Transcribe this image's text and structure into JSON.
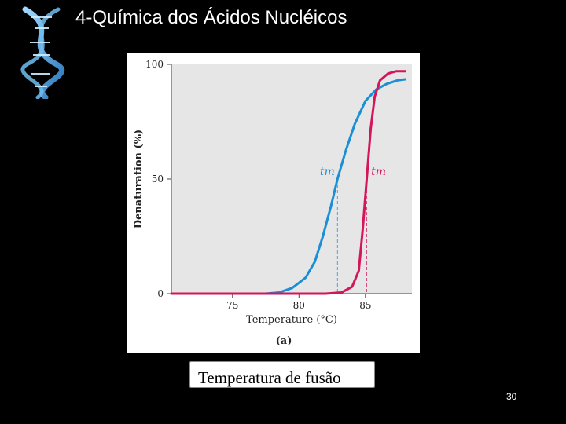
{
  "slide": {
    "title": "4-Química dos Ácidos Nucléicos",
    "caption": "Temperatura de fusão",
    "page_number": "30"
  },
  "colors": {
    "background": "#000000",
    "plot_background": "#e6e6e6",
    "series_blue": "#1a8fd6",
    "series_red": "#d4155a"
  },
  "chart_data": {
    "type": "line",
    "panel_label": "(a)",
    "xlabel": "Temperature (°C)",
    "ylabel": "Denaturation (%)",
    "xlim": [
      70.4,
      88.5
    ],
    "ylim": [
      0,
      100
    ],
    "x_ticks": [
      75,
      80,
      85
    ],
    "y_ticks": [
      0,
      50,
      100
    ],
    "grid": false,
    "series": [
      {
        "color": "#1a8fd6",
        "tm_label": "tm",
        "tm": 82.9,
        "x": [
          70.4,
          77.5,
          78.5,
          79.5,
          80.5,
          81.2,
          81.8,
          82.4,
          82.9,
          83.5,
          84.2,
          85.0,
          85.8,
          86.6,
          87.4,
          88.0
        ],
        "y": [
          0,
          0,
          0.5,
          2.5,
          7,
          14,
          25,
          38,
          50,
          62,
          74,
          84,
          89,
          91.5,
          93,
          93.5
        ]
      },
      {
        "color": "#d4155a",
        "tm_label": "tm",
        "tm": 85.1,
        "x": [
          70.4,
          80.0,
          82.0,
          83.2,
          84.0,
          84.5,
          84.8,
          85.1,
          85.4,
          85.7,
          86.1,
          86.7,
          87.3,
          88.0
        ],
        "y": [
          0,
          0,
          0,
          0.5,
          3,
          10,
          28,
          50,
          72,
          86,
          93,
          96,
          97,
          97
        ]
      }
    ]
  }
}
